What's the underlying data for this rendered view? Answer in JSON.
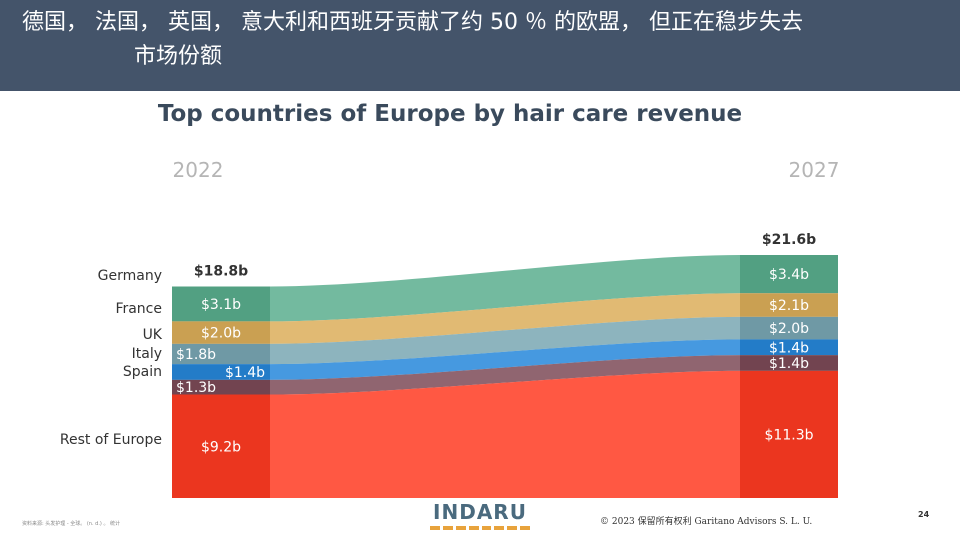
{
  "header": {
    "title_line1": "德国， 法国， 英国， 意大利和西班牙贡献了约 50 ％ 的欧盟， 但正在稳步失去",
    "title_line2": "市场份额"
  },
  "chart_data": {
    "type": "area",
    "title": "Top countries of Europe by hair care revenue",
    "years": [
      "2022",
      "2027"
    ],
    "totals": [
      "$18.8b",
      "$21.6b"
    ],
    "series": [
      {
        "name": "Germany",
        "values": [
          3.1,
          3.4
        ],
        "labels": [
          "$3.1b",
          "$3.4b"
        ],
        "color": "#5aae8e"
      },
      {
        "name": "France",
        "values": [
          2.0,
          2.1
        ],
        "labels": [
          "$2.0b",
          "$2.1b"
        ],
        "color": "#dcae5a"
      },
      {
        "name": "UK",
        "values": [
          1.8,
          2.0
        ],
        "labels": [
          "$1.8b",
          "$2.0b"
        ],
        "color": "#79a7b3"
      },
      {
        "name": "Italy",
        "values": [
          1.4,
          1.4
        ],
        "labels": [
          "$1.4b",
          "$1.4b"
        ],
        "color": "#2687da"
      },
      {
        "name": "Spain",
        "values": [
          1.3,
          1.4
        ],
        "labels": [
          "$1.3b",
          "$1.4b"
        ],
        "color": "#7c4a57"
      },
      {
        "name": "Rest of Europe",
        "values": [
          9.2,
          11.3
        ],
        "labels": [
          "$9.2b",
          "$11.3b"
        ],
        "color": "#ff3b22"
      }
    ]
  },
  "footer": {
    "logo": "INDARU",
    "copyright": "© 2023 保留所有权利 Garitano Advisors S. L. U.",
    "page": "24",
    "source": "资料来源: 头发护理 - 全球。 (n. d.) 。 统计"
  }
}
